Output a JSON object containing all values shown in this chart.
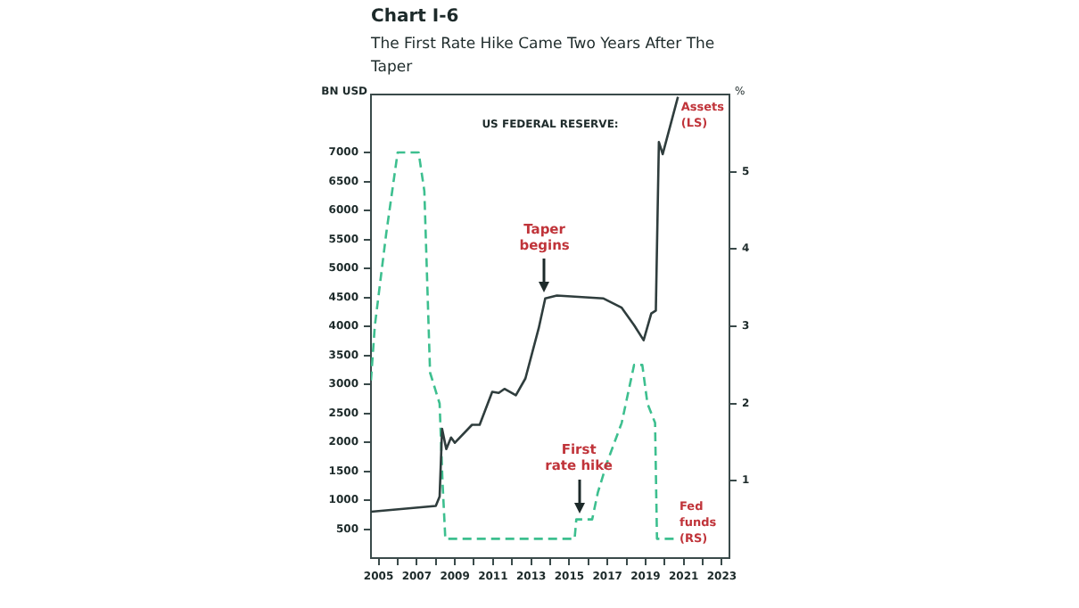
{
  "chart_data": {
    "type": "line",
    "title": "Chart I-6",
    "subtitle": "The First Rate Hike Came Two Years After The Taper",
    "ylabel": "BN USD",
    "y2label": "%",
    "annotations": [
      "US FEDERAL RESERVE:",
      {
        "text": "Taper begins",
        "x": 2013.7,
        "y": 4480
      },
      "First rate hike"
    ],
    "series": [
      {
        "name": "Assets (LS)",
        "color": "#2f3d3d",
        "axis": "y",
        "line_style": "solid",
        "x": [
          2004.6,
          2008.0,
          2008.2,
          2008.33,
          2008.55,
          2008.8,
          2009.0,
          2009.9,
          2010.3,
          2010.96,
          2011.3,
          2011.6,
          2012.2,
          2012.7,
          2013.4,
          2013.74,
          2014.35,
          2016.8,
          2017.75,
          2018.4,
          2018.9,
          2019.3,
          2019.54,
          2019.7,
          2019.9,
          2020.7
        ],
        "values": [
          800,
          900,
          1060,
          2230,
          1880,
          2080,
          1990,
          2300,
          2300,
          2870,
          2850,
          2920,
          2810,
          3100,
          3970,
          4480,
          4530,
          4480,
          4320,
          4020,
          3760,
          4220,
          4270,
          7180,
          6970,
          7960
        ]
      },
      {
        "name": "Fed funds (RS)",
        "color": "#3dbf8f",
        "axis": "y2",
        "line_style": "dashed",
        "x": [
          2004.6,
          2004.8,
          2005.4,
          2006.0,
          2007.1,
          2007.4,
          2007.7,
          2008.2,
          2008.35,
          2008.5,
          2015.28,
          2015.37,
          2016.2,
          2016.5,
          2017.0,
          2017.75,
          2018.4,
          2018.83,
          2019.1,
          2019.5,
          2019.6,
          2020.5
        ],
        "values": [
          2.3,
          3.0,
          4.2,
          5.25,
          5.25,
          4.75,
          2.4,
          2.0,
          1.0,
          0.25,
          0.25,
          0.5,
          0.5,
          0.85,
          1.25,
          1.75,
          2.5,
          2.5,
          2.0,
          1.75,
          0.25,
          0.25
        ]
      }
    ],
    "xlim": [
      2004.6,
      2023.4
    ],
    "xticks": [
      2005,
      {
        "value": 2006,
        "label": null
      },
      2007,
      {
        "value": 2008,
        "label": null
      },
      2009,
      {
        "value": 2010,
        "label": null
      },
      2011,
      {
        "value": 2012,
        "label": null
      },
      2013,
      {
        "value": 2014,
        "label": null
      },
      2015,
      {
        "value": 2016,
        "label": null
      },
      2017,
      {
        "value": 2018,
        "label": null
      },
      2019,
      {
        "value": 2020,
        "label": null
      },
      2021,
      {
        "value": 2022,
        "label": null
      },
      2023
    ],
    "ylim": [
      0,
      8000
    ],
    "yticks": [
      500,
      1000,
      1500,
      2000,
      2500,
      3000,
      3500,
      4000,
      4500,
      5000,
      5500,
      6000,
      6500,
      7000
    ],
    "y2lim": [
      0,
      6
    ],
    "y2ticks": [
      1,
      2,
      3,
      4,
      5
    ],
    "grid": false,
    "legend": false,
    "marker": "none"
  }
}
